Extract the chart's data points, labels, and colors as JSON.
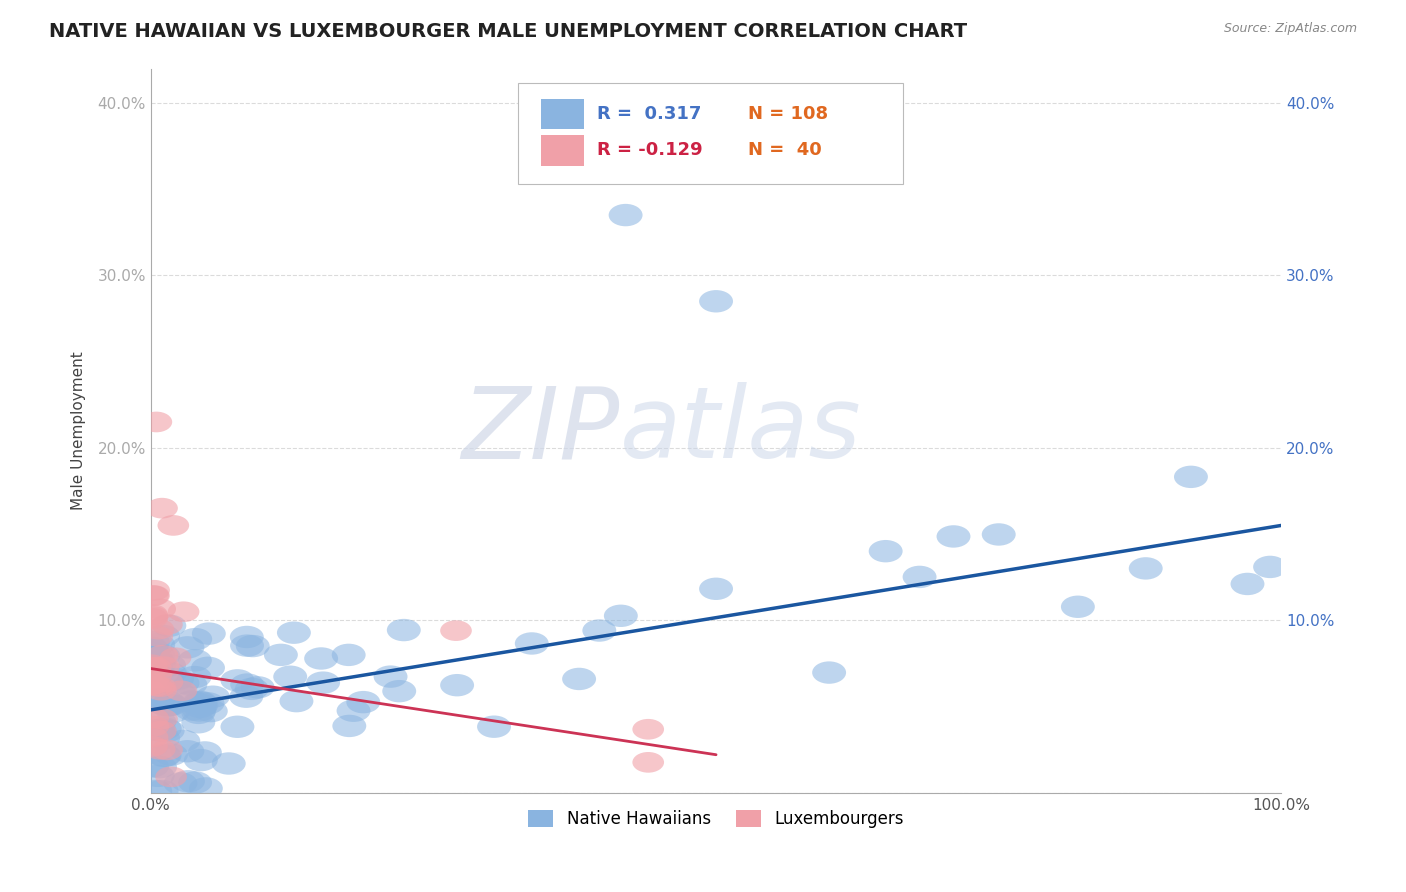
{
  "title": "NATIVE HAWAIIAN VS LUXEMBOURGER MALE UNEMPLOYMENT CORRELATION CHART",
  "source": "Source: ZipAtlas.com",
  "ylabel": "Male Unemployment",
  "legend_labels": [
    "Native Hawaiians",
    "Luxembourgers"
  ],
  "blue_color": "#8ab4e0",
  "pink_color": "#f0a0a8",
  "blue_line_color": "#1a56a0",
  "pink_line_color": "#cc3355",
  "background_color": "#ffffff",
  "grid_color": "#cccccc",
  "watermark_zip": "ZIP",
  "watermark_atlas": "atlas",
  "title_fontsize": 14,
  "axis_label_fontsize": 11,
  "tick_fontsize": 11,
  "xlim": [
    0.0,
    1.0
  ],
  "ylim": [
    0.0,
    0.42
  ],
  "yticks": [
    0.0,
    0.1,
    0.2,
    0.3,
    0.4
  ],
  "ytick_labels_left": [
    "",
    "10.0%",
    "20.0%",
    "30.0%",
    "40.0%"
  ],
  "ytick_labels_right": [
    "",
    "10.0%",
    "20.0%",
    "30.0%",
    "40.0%"
  ],
  "blue_R": 0.317,
  "blue_N": 108,
  "pink_R": -0.129,
  "pink_N": 40,
  "blue_line_x": [
    0.0,
    1.0
  ],
  "blue_line_y": [
    0.048,
    0.155
  ],
  "pink_line_x": [
    0.0,
    0.5
  ],
  "pink_line_y": [
    0.072,
    0.022
  ]
}
